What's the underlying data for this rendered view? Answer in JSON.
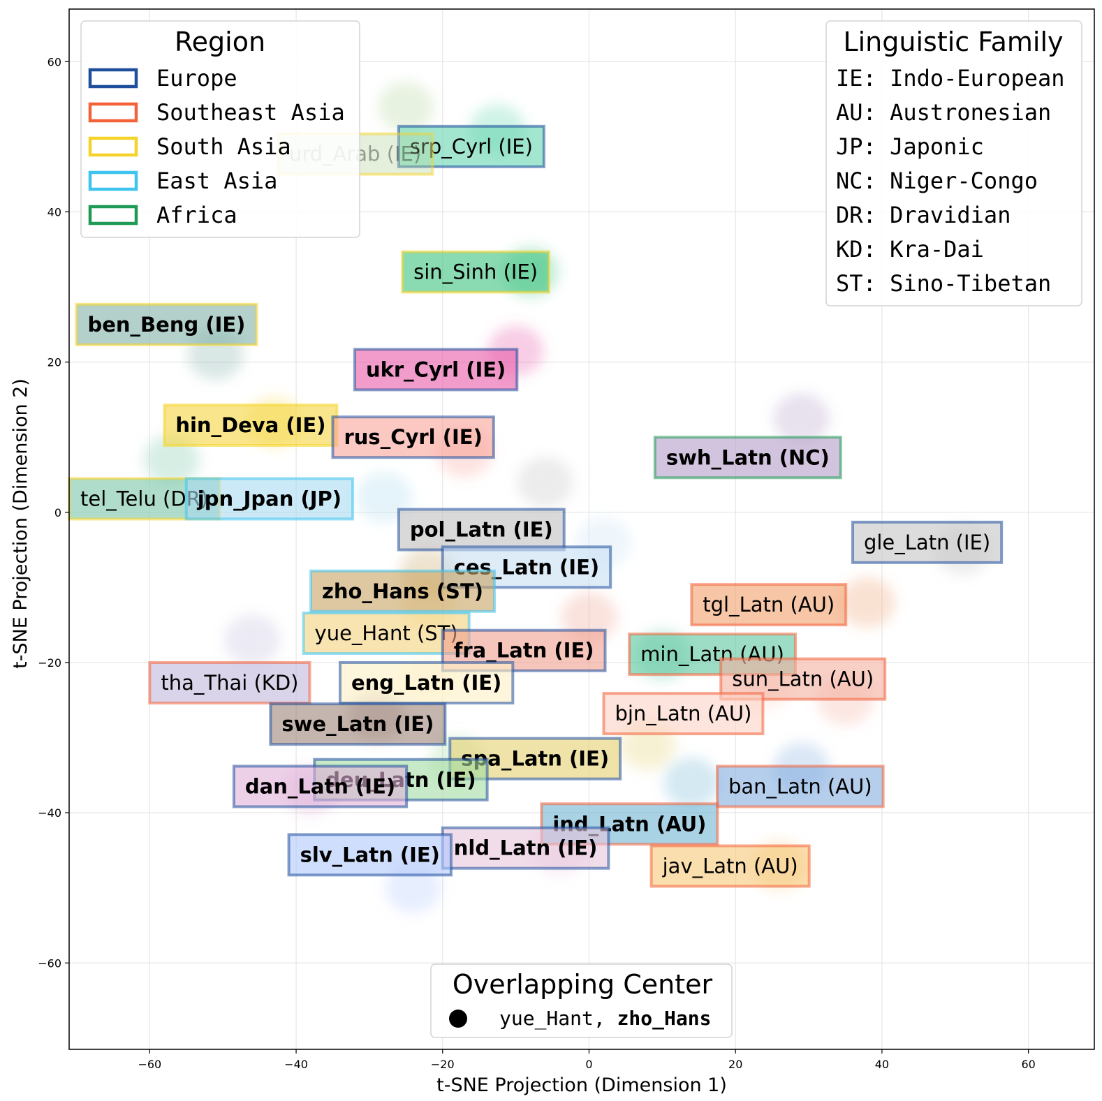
{
  "chart_data": {
    "type": "scatter",
    "subtype": "t-SNE cluster projection",
    "xlabel": "t-SNE Projection (Dimension 1)",
    "ylabel": "t-SNE Projection (Dimension 2)",
    "xlim": [
      -71,
      69
    ],
    "ylim": [
      -71.5,
      67
    ],
    "xticks": [
      -60,
      -40,
      -20,
      0,
      20,
      40,
      60
    ],
    "yticks": [
      60,
      40,
      20,
      0,
      -20,
      -40,
      -60
    ],
    "xtick_labels": [
      "−60",
      "−40",
      "−20",
      "0",
      "20",
      "40",
      "60"
    ],
    "ytick_labels": [
      "60",
      "40",
      "20",
      "0",
      "−20",
      "−40",
      "−60"
    ],
    "grid": true,
    "region_colors": {
      "Europe": "#1f4e9c",
      "Southeast Asia": "#f4623a",
      "South Asia": "#f5d328",
      "East Asia": "#3ec4ef",
      "Africa": "#1f9a56"
    },
    "clusters": [
      {
        "label": "srp_Cyrl (IE)",
        "x": -12.5,
        "y": 51,
        "box_x": -26,
        "box_y": 48.7,
        "color": "#66d6b0",
        "region": "Europe",
        "bold": false
      },
      {
        "label": "urd_Arab (IE)",
        "x": -25,
        "y": 54,
        "box_x": -42.5,
        "box_y": 47.7,
        "color": "#b4d49a",
        "region": "South Asia",
        "bold": false,
        "faded": true
      },
      {
        "label": "sin_Sinh (IE)",
        "x": -8,
        "y": 32,
        "box_x": -25.5,
        "box_y": 32,
        "color": "#3cc27e",
        "region": "South Asia",
        "bold": false
      },
      {
        "label": "ben_Beng (IE)",
        "x": -51,
        "y": 21,
        "box_x": -70,
        "box_y": 25,
        "color": "#80b0a8",
        "region": "South Asia",
        "bold": true
      },
      {
        "label": "ukr_Cyrl (IE)",
        "x": -10,
        "y": 21.5,
        "box_x": -32,
        "box_y": 19,
        "color": "#e85aa8",
        "region": "Europe",
        "bold": true
      },
      {
        "label": "hin_Deva (IE)",
        "x": -43,
        "y": 12,
        "box_x": -58,
        "box_y": 11.6,
        "color": "#f5d640",
        "region": "South Asia",
        "bold": true
      },
      {
        "label": "rus_Cyrl (IE)",
        "x": -17,
        "y": 8,
        "box_x": -35,
        "box_y": 10,
        "color": "#f9a39a",
        "region": "Europe",
        "bold": true
      },
      {
        "label": "swh_Latn (NC)",
        "x": 29,
        "y": 12.5,
        "box_x": 9,
        "box_y": 7.3,
        "color": "#b49cc8",
        "region": "Africa",
        "bold": true
      },
      {
        "label": "tel_Telu (DR)",
        "x": -57,
        "y": 7,
        "box_x": -71,
        "box_y": 1.8,
        "color": "#7cc6a8",
        "region": "South Asia",
        "bold": false
      },
      {
        "label": "jpn_Jpan (JP)",
        "x": -28,
        "y": 2,
        "box_x": -55,
        "box_y": 1.8,
        "color": "#a8daf0",
        "region": "East Asia",
        "bold": true
      },
      {
        "label": "pol_Latn (IE)",
        "x": -6,
        "y": 4,
        "box_x": -26,
        "box_y": -2.3,
        "color": "#c0c0c0",
        "region": "Europe",
        "bold": true
      },
      {
        "label": "ces_Latn (IE)",
        "x": 2,
        "y": -4,
        "box_x": -20,
        "box_y": -7.3,
        "color": "#c8e0f4",
        "region": "Europe",
        "bold": true
      },
      {
        "label": "gle_Latn (IE)",
        "x": 51,
        "y": -5,
        "box_x": 36,
        "box_y": -4,
        "color": "#c4c4c4",
        "region": "Europe",
        "bold": false
      },
      {
        "label": "zho_Hans (ST)",
        "x": -22,
        "y": -8,
        "box_x": -38,
        "box_y": -10.5,
        "color": "#c8a464",
        "region": "East Asia",
        "bold": true
      },
      {
        "label": "tgl_Latn (AU)",
        "x": 38,
        "y": -12,
        "box_x": 14,
        "box_y": -12.3,
        "color": "#f0a06c",
        "region": "Southeast Asia",
        "bold": false
      },
      {
        "label": "yue_Hant (ST)",
        "x": -22,
        "y": -12,
        "box_x": -39,
        "box_y": -16.1,
        "color": "#f4d27c",
        "region": "East Asia",
        "bold": false
      },
      {
        "label": "fra_Latn (IE)",
        "x": 0,
        "y": -14,
        "box_x": -20,
        "box_y": -18.4,
        "color": "#f0a090",
        "region": "Europe",
        "bold": true
      },
      {
        "label": "min_Latn (AU)",
        "x": 10,
        "y": -19,
        "box_x": 5.5,
        "box_y": -18.9,
        "color": "#5cc6a0",
        "region": "Southeast Asia",
        "bold": false
      },
      {
        "label": "sun_Latn (AU)",
        "x": 35,
        "y": -25,
        "box_x": 18,
        "box_y": -22.2,
        "color": "#f4b0a0",
        "region": "Southeast Asia",
        "bold": false
      },
      {
        "label": "tha_Thai (KD)",
        "x": -46,
        "y": -17,
        "box_x": -60,
        "box_y": -22.7,
        "color": "#c0b8dc",
        "region": "Southeast Asia",
        "bold": false
      },
      {
        "label": "eng_Latn (IE)",
        "x": -22,
        "y": -22,
        "box_x": -34,
        "box_y": -22.7,
        "color": "#fdf0c4",
        "region": "Europe",
        "bold": true
      },
      {
        "label": "bjn_Latn (AU)",
        "x": 24,
        "y": -23,
        "box_x": 2,
        "box_y": -26.8,
        "color": "#fcd2c4",
        "region": "Southeast Asia",
        "bold": false
      },
      {
        "label": "swe_Latn (IE)",
        "x": -29,
        "y": -27,
        "box_x": -43.5,
        "box_y": -28.2,
        "color": "#9c8478",
        "region": "Europe",
        "bold": true
      },
      {
        "label": "spa_Latn (IE)",
        "x": 8,
        "y": -31,
        "box_x": -19,
        "box_y": -32.8,
        "color": "#e4d070",
        "region": "Europe",
        "bold": true
      },
      {
        "label": "deu_Latn (IE)",
        "x": -18,
        "y": -33,
        "box_x": -37.5,
        "box_y": -35.6,
        "color": "#a4dca4",
        "region": "Europe",
        "bold": true
      },
      {
        "label": "dan_Latn (IE)",
        "x": -38,
        "y": -37,
        "box_x": -48.5,
        "box_y": -36.5,
        "color": "#e0b0d8",
        "region": "Europe",
        "bold": true
      },
      {
        "label": "ban_Latn (AU)",
        "x": 29,
        "y": -34,
        "box_x": 17.5,
        "box_y": -36.5,
        "color": "#84aee0",
        "region": "Southeast Asia",
        "bold": false
      },
      {
        "label": "ind_Latn (AU)",
        "x": 14,
        "y": -36,
        "box_x": -6.5,
        "box_y": -41.5,
        "color": "#6fb6d4",
        "region": "Southeast Asia",
        "bold": true
      },
      {
        "label": "nld_Latn (IE)",
        "x": -4,
        "y": -45,
        "box_x": -20,
        "box_y": -44.7,
        "color": "#e8c4dc",
        "region": "Europe",
        "bold": true
      },
      {
        "label": "jav_Latn (AU)",
        "x": 26,
        "y": -47,
        "box_x": 8.5,
        "box_y": -47.1,
        "color": "#f6c878",
        "region": "Southeast Asia",
        "bold": false
      },
      {
        "label": "slv_Latn (IE)",
        "x": -24,
        "y": -50,
        "box_x": -41,
        "box_y": -45.6,
        "color": "#b0c8fc",
        "region": "Europe",
        "bold": true
      }
    ]
  },
  "legend_region": {
    "title": "Region",
    "items": [
      {
        "label": "Europe",
        "color": "#1f4e9c"
      },
      {
        "label": "Southeast Asia",
        "color": "#f4623a"
      },
      {
        "label": "South Asia",
        "color": "#f5d328"
      },
      {
        "label": "East Asia",
        "color": "#3ec4ef"
      },
      {
        "label": "Africa",
        "color": "#1f9a56"
      }
    ]
  },
  "legend_family": {
    "title": "Linguistic Family",
    "items": [
      "IE: Indo-European",
      "AU: Austronesian",
      "JP: Japonic",
      "NC: Niger-Congo",
      "DR: Dravidian",
      "KD: Kra-Dai",
      "ST: Sino-Tibetan"
    ]
  },
  "legend_overlap": {
    "title": "Overlapping Center",
    "item_regular": "yue_Hant,",
    "item_bold": "zho_Hans"
  }
}
